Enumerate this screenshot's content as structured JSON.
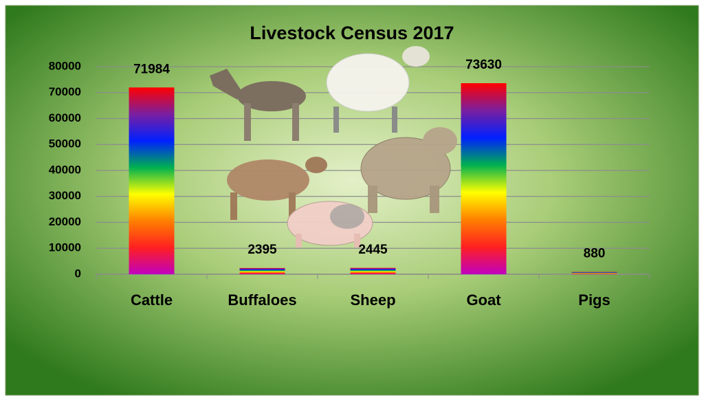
{
  "chart_data": {
    "type": "bar",
    "title": "Livestock Census 2017",
    "categories": [
      "Cattle",
      "Buffaloes",
      "Sheep",
      "Goat",
      "Pigs"
    ],
    "values": [
      71984,
      2395,
      2445,
      73630,
      880
    ],
    "colors": [
      "#ff0000",
      "#7a1fa0",
      "#0020ff",
      "#00b050",
      "#ffff00",
      "#ff8000",
      "#ff2020",
      "#c000c0"
    ],
    "ylim": [
      0,
      80000
    ],
    "yticks": [
      0,
      10000,
      20000,
      30000,
      40000,
      50000,
      60000,
      70000,
      80000
    ],
    "grid": true
  }
}
